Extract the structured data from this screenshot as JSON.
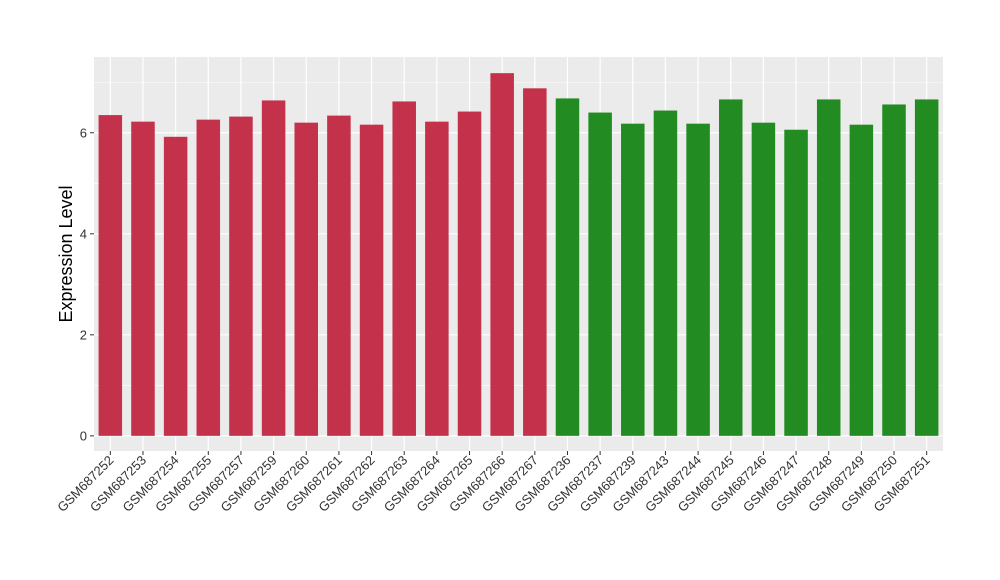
{
  "chart_data": {
    "type": "bar",
    "title": "",
    "xlabel": "",
    "ylabel": "Expression Level",
    "ylim": [
      -0.3,
      7.5
    ],
    "yticks": [
      0,
      2,
      4,
      6
    ],
    "ytick_labels": [
      "0",
      "2",
      "4",
      "6"
    ],
    "grid": true,
    "legend": "none",
    "categories": [
      "GSM687252",
      "GSM687253",
      "GSM687254",
      "GSM687255",
      "GSM687257",
      "GSM687259",
      "GSM687260",
      "GSM687261",
      "GSM687262",
      "GSM687263",
      "GSM687264",
      "GSM687265",
      "GSM687266",
      "GSM687267",
      "GSM687236",
      "GSM687237",
      "GSM687239",
      "GSM687243",
      "GSM687244",
      "GSM687245",
      "GSM687246",
      "GSM687247",
      "GSM687248",
      "GSM687249",
      "GSM687250",
      "GSM687251"
    ],
    "values": [
      6.35,
      6.22,
      5.92,
      6.26,
      6.32,
      6.64,
      6.2,
      6.34,
      6.16,
      6.62,
      6.22,
      6.42,
      7.18,
      6.88,
      6.68,
      6.4,
      6.18,
      6.44,
      6.18,
      6.66,
      6.2,
      6.06,
      6.66,
      6.16,
      6.56,
      6.66
    ],
    "bar_colors": [
      "#C3314A",
      "#C3314A",
      "#C3314A",
      "#C3314A",
      "#C3314A",
      "#C3314A",
      "#C3314A",
      "#C3314A",
      "#C3314A",
      "#C3314A",
      "#C3314A",
      "#C3314A",
      "#C3314A",
      "#C3314A",
      "#228B22",
      "#228B22",
      "#228B22",
      "#228B22",
      "#228B22",
      "#228B22",
      "#228B22",
      "#228B22",
      "#228B22",
      "#228B22",
      "#228B22",
      "#228B22"
    ],
    "panel_background": "#EBEBEB",
    "grid_color": "#FFFFFF"
  }
}
